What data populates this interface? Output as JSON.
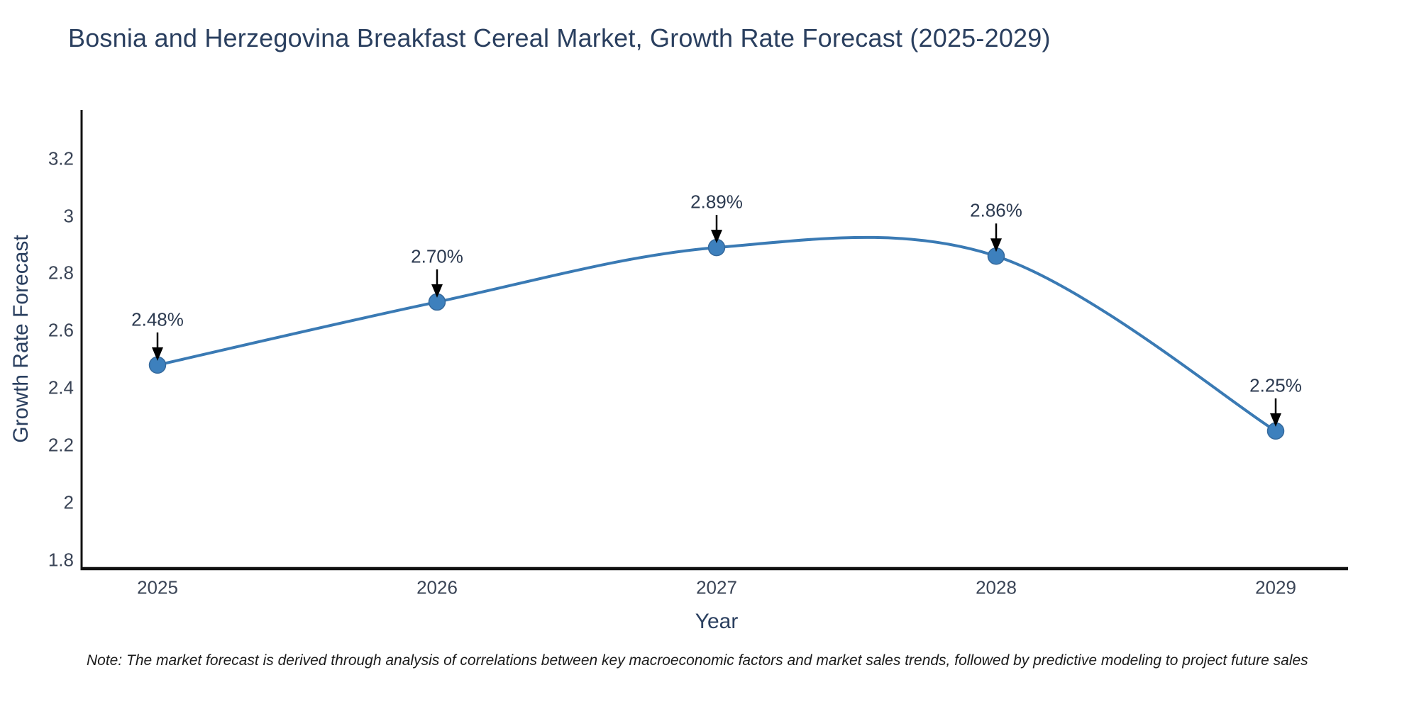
{
  "chart_data": {
    "type": "line",
    "title": "Bosnia and Herzegovina Breakfast Cereal Market, Growth Rate Forecast (2025-2029)",
    "xlabel": "Year",
    "ylabel": "Growth Rate Forecast",
    "categories": [
      "2025",
      "2026",
      "2027",
      "2028",
      "2029"
    ],
    "series": [
      {
        "name": "Growth Rate Forecast",
        "values": [
          2.48,
          2.7,
          2.89,
          2.86,
          2.25
        ]
      }
    ],
    "point_labels": [
      "2.48%",
      "2.70%",
      "2.89%",
      "2.86%",
      "2.25%"
    ],
    "yticks": [
      {
        "label": "3.2",
        "value": 3.2
      },
      {
        "label": "3",
        "value": 3.0
      },
      {
        "label": "2.8",
        "value": 2.8
      },
      {
        "label": "2.6",
        "value": 2.6
      },
      {
        "label": "2.4",
        "value": 2.4
      },
      {
        "label": "2.2",
        "value": 2.2
      },
      {
        "label": "2",
        "value": 2.0
      },
      {
        "label": "1.8",
        "value": 1.8
      }
    ],
    "ylim": [
      1.77,
      3.37
    ],
    "line_shape": "spline",
    "grid": false,
    "legend": "none",
    "colors": {
      "line": "#3a7ab4",
      "marker": "#3d80bd",
      "marker_edge": "#35699c",
      "axis": "#111111",
      "arrow": "#000000",
      "title": "#2a3f5f",
      "tick": "#3a4456",
      "annotation": "#2c3a50",
      "note": "#1b1b1b"
    }
  },
  "note": {
    "text": "Note: The market forecast is derived through analysis of correlations between key macroeconomic factors and market sales trends, followed by predictive modeling to project future sales"
  }
}
